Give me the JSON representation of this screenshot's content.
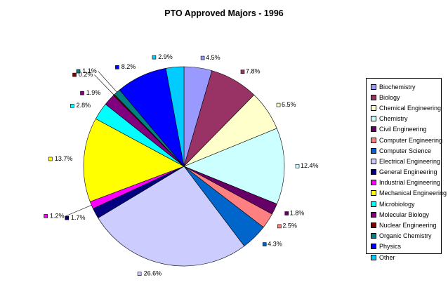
{
  "chart_data": {
    "type": "pie",
    "title": "PTO Approved Majors - 1996",
    "start_angle_deg": 0,
    "direction": "clockwise",
    "legend_position": "right",
    "slices": [
      {
        "label": "Biochemistry",
        "value": 4.5,
        "display": "4.5%",
        "color": "#9999ff"
      },
      {
        "label": "Biology",
        "value": 7.8,
        "display": "7.8%",
        "color": "#993366"
      },
      {
        "label": "Chemical Engineering",
        "value": 6.5,
        "display": "6.5%",
        "color": "#ffffcc"
      },
      {
        "label": "Chemistry",
        "value": 12.4,
        "display": "12.4%",
        "color": "#ccffff"
      },
      {
        "label": "Civil Engineering",
        "value": 1.8,
        "display": "1.8%",
        "color": "#660066"
      },
      {
        "label": "Computer Engineering",
        "value": 2.5,
        "display": "2.5%",
        "color": "#ff8080"
      },
      {
        "label": "Computer Science",
        "value": 4.3,
        "display": "4.3%",
        "color": "#0066cc"
      },
      {
        "label": "Electrical Engineering",
        "value": 26.6,
        "display": "26.6%",
        "color": "#ccccff"
      },
      {
        "label": "General Engineering",
        "value": 1.7,
        "display": "1.7%",
        "color": "#000080"
      },
      {
        "label": "Industrial Engineering",
        "value": 1.2,
        "display": "1.2%",
        "color": "#ff00ff"
      },
      {
        "label": "Mechanical Engineering",
        "value": 13.7,
        "display": "13.7%",
        "color": "#ffff00"
      },
      {
        "label": "Microbiology",
        "value": 2.8,
        "display": "2.8%",
        "color": "#00ffff"
      },
      {
        "label": "Molecular Biology",
        "value": 1.9,
        "display": "1.9%",
        "color": "#800080"
      },
      {
        "label": "Nuclear Engineering",
        "value": 0.2,
        "display": "0.2%",
        "color": "#800000"
      },
      {
        "label": "Organic Chemistry",
        "value": 1.1,
        "display": "1.1%",
        "color": "#008080"
      },
      {
        "label": "Physics",
        "value": 8.2,
        "display": "8.2%",
        "color": "#0000ff"
      },
      {
        "label": "Other",
        "value": 2.9,
        "display": "2.9%",
        "color": "#00ccff"
      }
    ]
  }
}
